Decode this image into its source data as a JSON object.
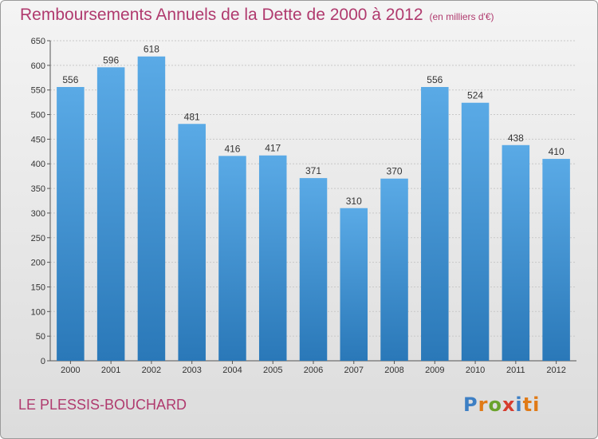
{
  "chart_data": {
    "type": "bar",
    "title": "Remboursements Annuels de la Dette de 2000 à 2012",
    "unit_note": "(en milliers d'€)",
    "categories": [
      "2000",
      "2001",
      "2002",
      "2003",
      "2004",
      "2005",
      "2006",
      "2007",
      "2008",
      "2009",
      "2010",
      "2011",
      "2012"
    ],
    "values": [
      556,
      596,
      618,
      481,
      416,
      417,
      371,
      310,
      370,
      556,
      524,
      438,
      410
    ],
    "ylim": [
      0,
      650
    ],
    "yticks": [
      0,
      50,
      100,
      150,
      200,
      250,
      300,
      350,
      400,
      450,
      500,
      550,
      600,
      650
    ],
    "grid": true,
    "bar_color_top": "#5aaae6",
    "bar_color_bottom": "#2a78b8"
  },
  "footer": {
    "place": "LE PLESSIS-BOUCHARD",
    "logo_letters": [
      "P",
      "r",
      "o",
      "x",
      "i",
      "ti"
    ]
  }
}
